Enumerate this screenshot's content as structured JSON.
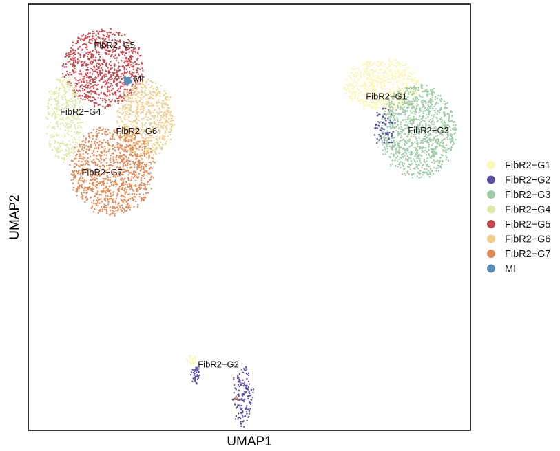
{
  "chart_data": {
    "type": "scatter",
    "title": "",
    "xlabel": "UMAP1",
    "ylabel": "UMAP2",
    "xlim": [
      0,
      100
    ],
    "ylim": [
      0,
      100
    ],
    "grid": false,
    "ticks": false,
    "legend_position": "right",
    "series": [
      {
        "name": "FibR2−G1",
        "color": "#fbf7b5"
      },
      {
        "name": "FibR2−G2",
        "color": "#5b4ea3"
      },
      {
        "name": "FibR2−G3",
        "color": "#9dcba4"
      },
      {
        "name": "FibR2−G4",
        "color": "#dfeaa9"
      },
      {
        "name": "FibR2−G5",
        "color": "#c2464b"
      },
      {
        "name": "FibR2−G6",
        "color": "#f0cd8a"
      },
      {
        "name": "FibR2−G7",
        "color": "#df8a55"
      },
      {
        "name": "MI",
        "color": "#5b8eb7"
      }
    ],
    "clusters": [
      {
        "series": 4,
        "n": 850,
        "cx": 17,
        "cy": 85,
        "rx": 9,
        "ry": 9
      },
      {
        "series": 3,
        "n": 380,
        "cx": 8,
        "cy": 73,
        "rx": 4,
        "ry": 10
      },
      {
        "series": 5,
        "n": 650,
        "cx": 26.5,
        "cy": 73,
        "rx": 6.5,
        "ry": 9
      },
      {
        "series": 6,
        "n": 1050,
        "cx": 19,
        "cy": 61,
        "rx": 9.5,
        "ry": 10.5
      },
      {
        "series": 7,
        "n": 25,
        "cx": 22.5,
        "cy": 82,
        "rx": 0.7,
        "ry": 0.6
      },
      {
        "series": 0,
        "n": 650,
        "cx": 80,
        "cy": 81,
        "rx": 8.5,
        "ry": 6
      },
      {
        "series": 2,
        "n": 1100,
        "cx": 88,
        "cy": 70,
        "rx": 8.5,
        "ry": 11
      },
      {
        "series": 1,
        "n": 70,
        "cx": 80.5,
        "cy": 71,
        "rx": 2.5,
        "ry": 4.5
      },
      {
        "series": 1,
        "n": 150,
        "cx": 48.5,
        "cy": 8,
        "rx": 2.2,
        "ry": 7
      },
      {
        "series": 1,
        "n": 40,
        "cx": 38,
        "cy": 13,
        "rx": 1,
        "ry": 2
      },
      {
        "series": 0,
        "n": 25,
        "cx": 37,
        "cy": 16.5,
        "rx": 1,
        "ry": 1
      },
      {
        "series": 6,
        "n": 6,
        "cx": 47,
        "cy": 7.5,
        "rx": 0.6,
        "ry": 0.6
      }
    ],
    "annotations": [
      {
        "text": "FibR2−G5",
        "x": 19.5,
        "y": 90.3
      },
      {
        "text": "MI",
        "x": 25,
        "y": 82.5
      },
      {
        "text": "FibR2−G4",
        "x": 11.8,
        "y": 74.7
      },
      {
        "text": "FibR2−G6",
        "x": 24.5,
        "y": 70.2
      },
      {
        "text": "FibR2−G7",
        "x": 16.7,
        "y": 60.5
      },
      {
        "text": "FibR2−G1",
        "x": 81,
        "y": 78.3
      },
      {
        "text": "FibR2−G3",
        "x": 90.5,
        "y": 70.3
      },
      {
        "text": "FibR2−G2",
        "x": 43,
        "y": 15.4
      }
    ]
  }
}
